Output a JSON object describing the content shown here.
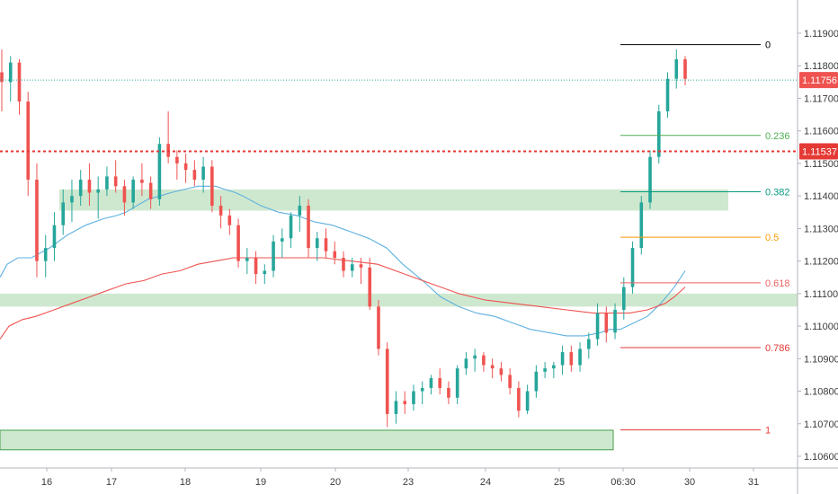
{
  "chart_data": {
    "type": "candlestick",
    "title": "",
    "xlabel": "",
    "ylabel": "",
    "ylim": [
      1.10595,
      1.12015
    ],
    "y_ticks": [
      "1.11900",
      "1.11800",
      "1.11700",
      "1.11600",
      "1.11500",
      "1.11400",
      "1.11300",
      "1.11200",
      "1.11100",
      "1.11000",
      "1.10900",
      "1.10800",
      "1.10700",
      "1.10600"
    ],
    "x_ticks": [
      "16",
      "17",
      "18",
      "19",
      "20",
      "23",
      "24",
      "25",
      "06:30",
      "30",
      "31"
    ],
    "price_markers": [
      {
        "label": "1.11756",
        "value": 1.11756,
        "color": "#ef5350",
        "line": "dotted-teal"
      },
      {
        "label": "1.11537",
        "value": 1.11537,
        "color": "#e53935",
        "line": "dotted-red"
      }
    ],
    "fibonacci": [
      {
        "label": "0",
        "value": 1.11865,
        "color": "#000000"
      },
      {
        "label": "0.236",
        "value": 1.11586,
        "color": "#4caf50"
      },
      {
        "label": "0.382",
        "value": 1.11413,
        "color": "#089981"
      },
      {
        "label": "0.5",
        "value": 1.11273,
        "color": "#ff9800"
      },
      {
        "label": "0.618",
        "value": 1.11133,
        "color": "#f06262"
      },
      {
        "label": "0.786",
        "value": 1.10934,
        "color": "#e53935"
      },
      {
        "label": "1",
        "value": 1.10681,
        "color": "#e53935"
      }
    ],
    "zones": [
      {
        "from": 1.11355,
        "to": 1.1142
      },
      {
        "from": 1.1106,
        "to": 1.111
      },
      {
        "from": 1.1062,
        "to": 1.1068
      }
    ],
    "series": [
      {
        "type": "candles",
        "points": [
          [
            1.1178,
            1.1185,
            1.1166,
            1.1175
          ],
          [
            1.1175,
            1.1183,
            1.1169,
            1.1181
          ],
          [
            1.1181,
            1.1182,
            1.1165,
            1.1169
          ],
          [
            1.1169,
            1.1172,
            1.114,
            1.1145
          ],
          [
            1.1145,
            1.115,
            1.1115,
            1.112
          ],
          [
            1.112,
            1.1128,
            1.1115,
            1.1124
          ],
          [
            1.1124,
            1.1135,
            1.112,
            1.1131
          ],
          [
            1.1131,
            1.1142,
            1.1128,
            1.1138
          ],
          [
            1.1138,
            1.1145,
            1.1132,
            1.114
          ],
          [
            1.114,
            1.1148,
            1.1137,
            1.1145
          ],
          [
            1.1145,
            1.115,
            1.1137,
            1.1141
          ],
          [
            1.1141,
            1.1146,
            1.1133,
            1.1142
          ],
          [
            1.1142,
            1.1149,
            1.114,
            1.1146
          ],
          [
            1.1146,
            1.1151,
            1.1141,
            1.1143
          ],
          [
            1.1143,
            1.1145,
            1.1134,
            1.1138
          ],
          [
            1.1138,
            1.1146,
            1.1136,
            1.1145
          ],
          [
            1.1145,
            1.115,
            1.114,
            1.1144
          ],
          [
            1.1144,
            1.1146,
            1.1136,
            1.1139
          ],
          [
            1.1139,
            1.1158,
            1.1137,
            1.1156
          ],
          [
            1.1156,
            1.1166,
            1.115,
            1.1152
          ],
          [
            1.1152,
            1.1154,
            1.1145,
            1.115
          ],
          [
            1.115,
            1.1153,
            1.1144,
            1.1148
          ],
          [
            1.1148,
            1.1151,
            1.1143,
            1.1145
          ],
          [
            1.1145,
            1.1152,
            1.1141,
            1.1149
          ],
          [
            1.1149,
            1.1151,
            1.1135,
            1.1137
          ],
          [
            1.1137,
            1.114,
            1.113,
            1.1134
          ],
          [
            1.1134,
            1.1136,
            1.1128,
            1.1131
          ],
          [
            1.1131,
            1.1133,
            1.1118,
            1.112
          ],
          [
            1.112,
            1.1124,
            1.1116,
            1.1121
          ],
          [
            1.1121,
            1.1123,
            1.1113,
            1.1116
          ],
          [
            1.1116,
            1.1119,
            1.1113,
            1.1117
          ],
          [
            1.1117,
            1.1128,
            1.1115,
            1.1126
          ],
          [
            1.1126,
            1.113,
            1.1121,
            1.1127
          ],
          [
            1.1127,
            1.1135,
            1.1124,
            1.1134
          ],
          [
            1.1134,
            1.114,
            1.1129,
            1.1137
          ],
          [
            1.1137,
            1.1139,
            1.1121,
            1.1124
          ],
          [
            1.1124,
            1.1129,
            1.112,
            1.1127
          ],
          [
            1.1127,
            1.113,
            1.1121,
            1.1123
          ],
          [
            1.1123,
            1.1126,
            1.1119,
            1.1121
          ],
          [
            1.1121,
            1.1123,
            1.1115,
            1.1117
          ],
          [
            1.1117,
            1.1121,
            1.1115,
            1.1119
          ],
          [
            1.1119,
            1.1121,
            1.1113,
            1.1118
          ],
          [
            1.1118,
            1.1121,
            1.1105,
            1.1106
          ],
          [
            1.1106,
            1.1108,
            1.1091,
            1.1093
          ],
          [
            1.1093,
            1.1095,
            1.1069,
            1.1073
          ],
          [
            1.1073,
            1.108,
            1.107,
            1.1077
          ],
          [
            1.1077,
            1.108,
            1.1073,
            1.1076
          ],
          [
            1.1076,
            1.1082,
            1.1074,
            1.108
          ],
          [
            1.108,
            1.1083,
            1.1076,
            1.1081
          ],
          [
            1.1081,
            1.1085,
            1.1079,
            1.1084
          ],
          [
            1.1084,
            1.1087,
            1.1079,
            1.1081
          ],
          [
            1.1081,
            1.1083,
            1.1076,
            1.1078
          ],
          [
            1.1078,
            1.1088,
            1.1076,
            1.1087
          ],
          [
            1.1087,
            1.1092,
            1.1085,
            1.109
          ],
          [
            1.109,
            1.1093,
            1.1086,
            1.1091
          ],
          [
            1.1091,
            1.1092,
            1.1086,
            1.1088
          ],
          [
            1.1088,
            1.109,
            1.1084,
            1.1087
          ],
          [
            1.1087,
            1.1089,
            1.1083,
            1.1085
          ],
          [
            1.1085,
            1.1087,
            1.1079,
            1.1081
          ],
          [
            1.1081,
            1.1083,
            1.1072,
            1.1074
          ],
          [
            1.1074,
            1.1082,
            1.1073,
            1.108
          ],
          [
            1.108,
            1.1088,
            1.1078,
            1.1086
          ],
          [
            1.1086,
            1.1089,
            1.1084,
            1.1087
          ],
          [
            1.1087,
            1.1089,
            1.1084,
            1.1088
          ],
          [
            1.1088,
            1.1094,
            1.1085,
            1.1092
          ],
          [
            1.1092,
            1.1094,
            1.1086,
            1.1088
          ],
          [
            1.1088,
            1.1095,
            1.1086,
            1.1093
          ],
          [
            1.1093,
            1.1098,
            1.109,
            1.1096
          ],
          [
            1.1096,
            1.1107,
            1.1094,
            1.1104
          ],
          [
            1.1104,
            1.1106,
            1.1095,
            1.1098
          ],
          [
            1.1098,
            1.1107,
            1.1096,
            1.1105
          ],
          [
            1.1105,
            1.1115,
            1.1102,
            1.1112
          ],
          [
            1.1112,
            1.1126,
            1.111,
            1.1124
          ],
          [
            1.1124,
            1.114,
            1.1122,
            1.1138
          ],
          [
            1.1138,
            1.1154,
            1.1136,
            1.1152
          ],
          [
            1.1152,
            1.1168,
            1.115,
            1.1166
          ],
          [
            1.1166,
            1.1178,
            1.1164,
            1.1176
          ],
          [
            1.1176,
            1.1185,
            1.1173,
            1.1182
          ],
          [
            1.1182,
            1.1183,
            1.1174,
            1.1176
          ]
        ]
      },
      {
        "type": "line",
        "color": "#5eb1e0",
        "x": [
          0,
          8,
          20,
          35,
          55,
          75,
          95,
          115,
          130,
          140,
          152,
          165,
          178,
          190,
          205,
          220,
          240,
          250,
          262,
          270,
          290,
          310,
          330,
          350,
          370,
          390,
          410,
          430,
          448,
          470,
          490,
          510,
          530,
          550,
          570,
          590,
          610,
          630,
          650,
          668,
          678,
          690,
          705,
          720,
          735,
          750,
          762
        ],
        "y": [
          1.1115,
          1.1119,
          1.1121,
          1.1121,
          1.1124,
          1.1128,
          1.1131,
          1.1133,
          1.1134,
          1.1135,
          1.1137,
          1.1139,
          1.114,
          1.1141,
          1.1142,
          1.1143,
          1.1143,
          1.1142,
          1.1141,
          1.114,
          1.1137,
          1.1135,
          1.1134,
          1.1132,
          1.1131,
          1.1129,
          1.1127,
          1.1124,
          1.1119,
          1.1114,
          1.1109,
          1.1106,
          1.1104,
          1.1103,
          1.1101,
          1.1099,
          1.1098,
          1.1097,
          1.1097,
          1.1098,
          1.1099,
          1.1099,
          1.1101,
          1.1103,
          1.1107,
          1.1112,
          1.1117
        ]
      },
      {
        "type": "line",
        "color": "#ef5350",
        "x": [
          0,
          10,
          25,
          40,
          60,
          80,
          100,
          120,
          140,
          160,
          180,
          200,
          220,
          240,
          260,
          280,
          300,
          330,
          360,
          390,
          420,
          450,
          480,
          510,
          540,
          570,
          600,
          630,
          660,
          680,
          700,
          720,
          740,
          750,
          762
        ],
        "y": [
          1.1096,
          1.11,
          1.1102,
          1.1103,
          1.1105,
          1.1107,
          1.1109,
          1.1111,
          1.1113,
          1.1114,
          1.1116,
          1.1117,
          1.1119,
          1.112,
          1.1121,
          1.1121,
          1.1121,
          1.1121,
          1.1121,
          1.112,
          1.1119,
          1.1116,
          1.1113,
          1.111,
          1.1108,
          1.1107,
          1.1106,
          1.1105,
          1.1104,
          1.1104,
          1.1104,
          1.1105,
          1.1107,
          1.1109,
          1.1112
        ]
      }
    ]
  }
}
